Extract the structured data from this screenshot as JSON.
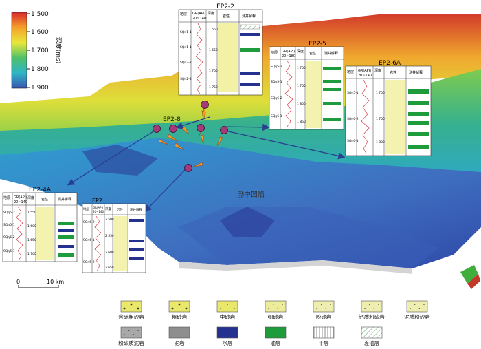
{
  "colorbar": {
    "ticks": [
      "1 500",
      "1 600",
      "1 700",
      "1 800",
      "1 900"
    ],
    "title": "深度(ms)"
  },
  "scalebar": {
    "start": "0",
    "end": "10 km"
  },
  "map_label": "渤中凹陷",
  "wells": [
    {
      "name": "EP2-2",
      "headers": [
        "地层\n层序",
        "GR(API)\n20~140",
        "深度\n(m)",
        "岩性",
        "测井解释"
      ],
      "units": [
        "SQη1-1",
        "SQη1-1",
        "SQη2-2",
        "SQη2-3"
      ],
      "depths": [
        "1 550",
        "1 650",
        "1 700",
        "1 750"
      ]
    },
    {
      "name": "EP2-5",
      "headers": [
        "地层\n层序",
        "GR(API)\n20~180",
        "深度\n(m)",
        "岩性",
        "测井解释"
      ],
      "units": [
        "SQη5-2",
        "SQη5-1",
        "SQη6-2",
        "SQη6-1"
      ],
      "depths": [
        "1 700",
        "1 750",
        "1 800",
        "1 850"
      ]
    },
    {
      "name": "EP2-6A",
      "headers": [
        "地层\n层序",
        "GR(API)\n20~140",
        "深度\n(m)",
        "岩性",
        "测井解释"
      ],
      "units": [
        "SQη5-1",
        "SQη6-2",
        "SQη6-1"
      ],
      "depths": [
        "1 700",
        "1 750",
        "1 800"
      ]
    },
    {
      "name": "EP2-8",
      "headers": [],
      "units": [],
      "depths": []
    },
    {
      "name": "EP2-4A",
      "headers": [
        "地层\n层序",
        "GR(API)\n20~140",
        "深度\n(m)",
        "岩性",
        "测井解释"
      ],
      "units": [
        "SQη5-2",
        "SQη5-1",
        "SQη6-2",
        "SQη6-1"
      ],
      "depths": [
        "1 550",
        "1 600",
        "1 650",
        "1 700"
      ]
    },
    {
      "name": "EP2",
      "headers": [
        "地层\n层序",
        "GR(API)\n20~140",
        "深度\n(m)",
        "岩性",
        "测井解释"
      ],
      "units": [
        "SQη6-2",
        "SQη6-1",
        "SQη5-2"
      ],
      "depths": [
        "2 500",
        "2 550",
        "2 600",
        "2 650"
      ]
    }
  ],
  "legend": [
    {
      "label": "含砾粗砂岩",
      "pattern": "conglomerate",
      "color": "#e9e86b"
    },
    {
      "label": "粗砂岩",
      "pattern": "coarse",
      "color": "#e9e86b"
    },
    {
      "label": "中砂岩",
      "pattern": "medium",
      "color": "#e9e86b"
    },
    {
      "label": "细砂岩",
      "pattern": "fine",
      "color": "#ecec9a"
    },
    {
      "label": "粉砂岩",
      "pattern": "silt",
      "color": "#eeeeb0"
    },
    {
      "label": "钙质粉砂岩",
      "pattern": "calc",
      "color": "#eeeeb0"
    },
    {
      "label": "泥质粉砂岩",
      "pattern": "mudsilt",
      "color": "#eeeeb0"
    },
    {
      "label": "粉砂质泥岩",
      "pattern": "siltmud",
      "color": "#a8a8a8"
    },
    {
      "label": "泥岩",
      "pattern": "mud",
      "color": "#8e8e8e"
    },
    {
      "label": "水层",
      "pattern": "water",
      "color": "#25318f"
    },
    {
      "label": "油层",
      "pattern": "oil",
      "color": "#1e9b3a"
    },
    {
      "label": "干层",
      "pattern": "dry",
      "color": "#ffffff"
    },
    {
      "label": "差油层",
      "pattern": "pooroil",
      "color": "#ffffff"
    }
  ]
}
